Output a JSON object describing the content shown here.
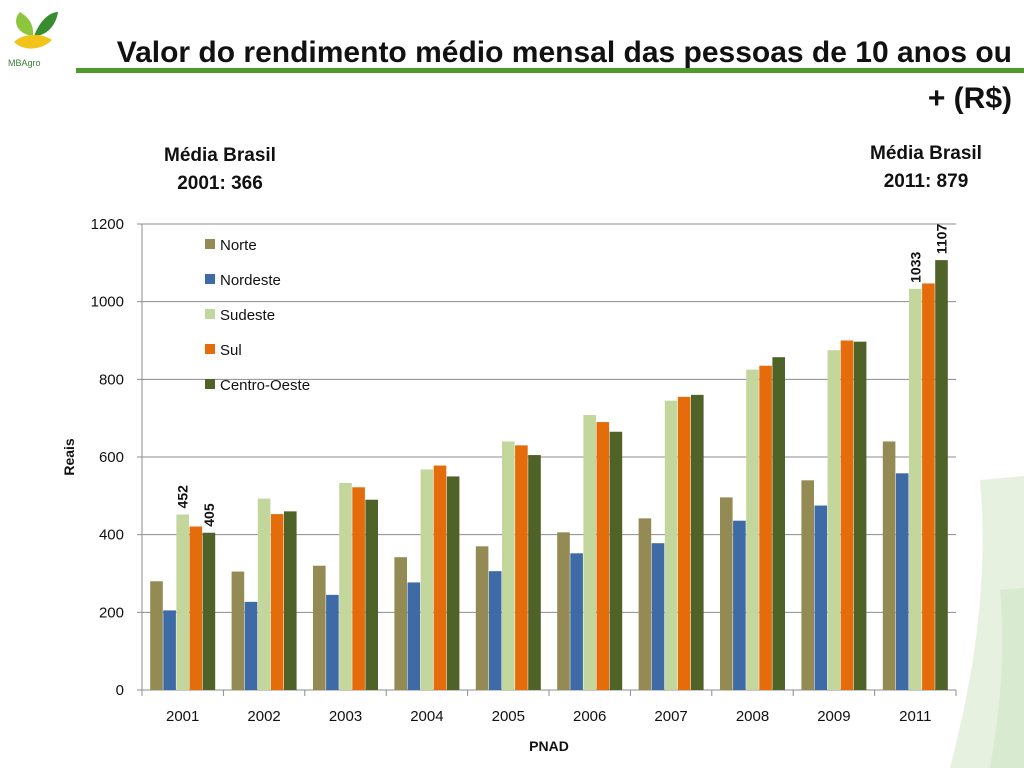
{
  "header": {
    "logo_text": "MBAgro",
    "title": "Valor do rendimento médio mensal das pessoas de 10 anos ou + (R$)"
  },
  "notes": {
    "left": [
      "Média Brasil",
      "2001: 366"
    ],
    "right": [
      "Média Brasil",
      "2011: 879"
    ]
  },
  "colors": {
    "Norte": "#948a54",
    "Nordeste": "#3e6aa6",
    "Sudeste": "#c3d69b",
    "Sul": "#e46c0a",
    "Centro-Oeste": "#4f6228",
    "accent": "#4f9a2c"
  },
  "chart_data": {
    "type": "bar",
    "categories": [
      "2001",
      "2002",
      "2003",
      "2004",
      "2005",
      "2006",
      "2007",
      "2008",
      "2009",
      "2011"
    ],
    "series": [
      {
        "name": "Norte",
        "values": [
          280,
          305,
          320,
          342,
          370,
          406,
          442,
          496,
          540,
          640
        ]
      },
      {
        "name": "Nordeste",
        "values": [
          205,
          227,
          245,
          277,
          306,
          352,
          378,
          436,
          475,
          558
        ]
      },
      {
        "name": "Sudeste",
        "values": [
          452,
          493,
          533,
          568,
          640,
          708,
          745,
          825,
          875,
          1033
        ]
      },
      {
        "name": "Sul",
        "values": [
          421,
          453,
          522,
          578,
          630,
          690,
          755,
          835,
          900,
          1047
        ]
      },
      {
        "name": "Centro-Oeste",
        "values": [
          405,
          460,
          490,
          550,
          605,
          665,
          760,
          857,
          897,
          1107
        ]
      }
    ],
    "xlabel": "PNAD",
    "ylabel": "Reais",
    "ylim": [
      0,
      1200
    ],
    "yticks": [
      0,
      200,
      400,
      600,
      800,
      1000,
      1200
    ],
    "grid": true,
    "legend_position": "top-left",
    "annotations": [
      {
        "category": "2001",
        "series": "Sudeste",
        "text": "452"
      },
      {
        "category": "2001",
        "series": "Centro-Oeste",
        "text": "405"
      },
      {
        "category": "2011",
        "series": "Sudeste",
        "text": "1033"
      },
      {
        "category": "2011",
        "series": "Centro-Oeste",
        "text": "1107"
      }
    ]
  }
}
